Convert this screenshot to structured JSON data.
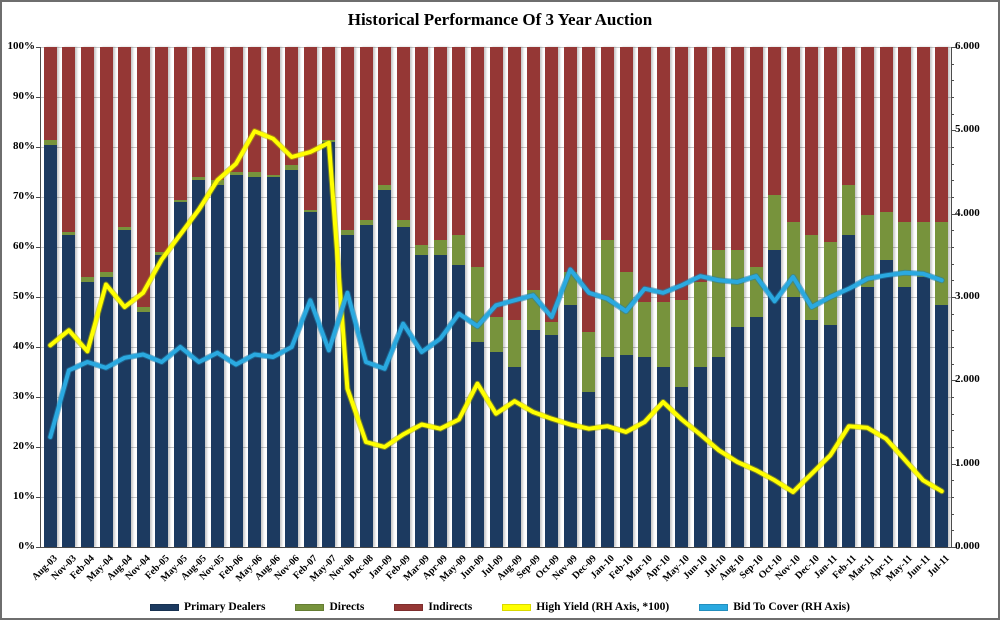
{
  "window": {
    "title": "Historical Performance Of 3 Year Auction"
  },
  "chart_data": {
    "type": "bar",
    "variant": "100-percent-stacked-bars-with-overlay-lines",
    "title": "Historical Performance Of 3 Year Auction",
    "grid": "horizontal",
    "legend_position": "bottom",
    "categories": [
      "Aug-03",
      "Nov-03",
      "Feb-04",
      "May-04",
      "Aug-04",
      "Nov-04",
      "Feb-05",
      "May-05",
      "Aug-05",
      "Nov-05",
      "Feb-06",
      "May-06",
      "Aug-06",
      "Nov-06",
      "Feb-07",
      "May-07",
      "Nov-08",
      "Dec-08",
      "Jan-09",
      "Feb-09",
      "Mar-09",
      "Apr-09",
      "May-09",
      "Jun-09",
      "Jul-09",
      "Aug-09",
      "Sep-09",
      "Oct-09",
      "Nov-09",
      "Dec-09",
      "Jan-10",
      "Feb-10",
      "Mar-10",
      "Apr-10",
      "May-10",
      "Jun-10",
      "Jul-10",
      "Aug-10",
      "Sep-10",
      "Oct-10",
      "Nov-10",
      "Dec-10",
      "Jan-11",
      "Feb-11",
      "Mar-11",
      "Apr-11",
      "May-11",
      "Jun-11",
      "Jul-11"
    ],
    "left_axis": {
      "min": 0,
      "max": 100,
      "ticks": [
        "0%",
        "10%",
        "20%",
        "30%",
        "40%",
        "50%",
        "60%",
        "70%",
        "80%",
        "90%",
        "100%"
      ]
    },
    "right_axis": {
      "min": 0,
      "max": 6,
      "ticks": [
        "0.000",
        "1.000",
        "2.000",
        "3.000",
        "4.000",
        "5.000",
        "6.000"
      ]
    },
    "series": [
      {
        "name": "Primary Dealers",
        "type": "bar",
        "axis": "left",
        "unit": "%",
        "color": "#1c3a60",
        "values": [
          80.5,
          62.5,
          53,
          54,
          63.5,
          47,
          58.5,
          69,
          73.5,
          72.5,
          74.5,
          74,
          74,
          75.5,
          67,
          81,
          62.5,
          64.5,
          71.5,
          64,
          58.5,
          58.5,
          56.5,
          41,
          39,
          36,
          43.5,
          42.5,
          48.5,
          31,
          38,
          38.5,
          38,
          36,
          32,
          36,
          38,
          44,
          46,
          59.5,
          50,
          45.5,
          44.5,
          62.5,
          52,
          57.5,
          52,
          54,
          48.5
        ]
      },
      {
        "name": "Directs",
        "type": "bar",
        "axis": "left",
        "unit": "%",
        "color": "#77933c",
        "values": [
          1,
          0.5,
          1,
          1,
          0.5,
          1,
          0.5,
          0.5,
          0.5,
          1,
          0.5,
          1,
          0.5,
          1,
          0.5,
          0.5,
          1,
          1,
          1,
          1.5,
          2,
          3,
          6,
          15,
          7,
          9.5,
          8,
          2.5,
          6.5,
          12,
          23.5,
          16.5,
          11,
          13,
          17.5,
          17,
          21.5,
          15.5,
          10,
          11,
          15,
          17,
          16.5,
          10,
          14.5,
          9.5,
          13,
          11,
          16.5
        ]
      },
      {
        "name": "Indirects",
        "type": "bar",
        "axis": "left",
        "unit": "%",
        "color": "#953735",
        "values": [
          18.5,
          37,
          46,
          45,
          36,
          52,
          41,
          30.5,
          26,
          26.5,
          25,
          25,
          25.5,
          23.5,
          32.5,
          18.5,
          36.5,
          34.5,
          27.5,
          34.5,
          39.5,
          38.5,
          37.5,
          44,
          54,
          54.5,
          48.5,
          55,
          45,
          57,
          38.5,
          45,
          51,
          51,
          50.5,
          47,
          40.5,
          40.5,
          44,
          29.5,
          35,
          37.5,
          39,
          27.5,
          33.5,
          33,
          35,
          35,
          35
        ]
      },
      {
        "name": "High Yield (RH Axis, *100)",
        "type": "line",
        "axis": "right",
        "color": "#ffff00",
        "halo": "#b9b400",
        "values": [
          2.42,
          2.6,
          2.35,
          3.15,
          2.88,
          3.05,
          3.45,
          3.75,
          4.05,
          4.4,
          4.6,
          4.99,
          4.9,
          4.68,
          4.74,
          4.85,
          1.9,
          1.26,
          1.2,
          1.35,
          1.47,
          1.42,
          1.53,
          1.96,
          1.6,
          1.75,
          1.62,
          1.54,
          1.47,
          1.42,
          1.45,
          1.38,
          1.5,
          1.74,
          1.53,
          1.35,
          1.16,
          1.02,
          0.92,
          0.8,
          0.66,
          0.88,
          1.1,
          1.45,
          1.43,
          1.3,
          1.05,
          0.8,
          0.67
        ]
      },
      {
        "name": "Bid To Cover (RH Axis)",
        "type": "line",
        "axis": "right",
        "color": "#2aa9e0",
        "halo": "#1d7fae",
        "values": [
          1.32,
          2.12,
          2.22,
          2.15,
          2.27,
          2.31,
          2.22,
          2.4,
          2.22,
          2.33,
          2.19,
          2.31,
          2.28,
          2.4,
          2.96,
          2.36,
          3.05,
          2.22,
          2.14,
          2.68,
          2.34,
          2.5,
          2.8,
          2.65,
          2.9,
          2.96,
          3.02,
          2.76,
          3.33,
          3.05,
          2.98,
          2.83,
          3.1,
          3.05,
          3.14,
          3.25,
          3.2,
          3.18,
          3.25,
          2.95,
          3.24,
          2.88,
          3.0,
          3.1,
          3.22,
          3.26,
          3.29,
          3.28,
          3.2
        ]
      }
    ]
  }
}
